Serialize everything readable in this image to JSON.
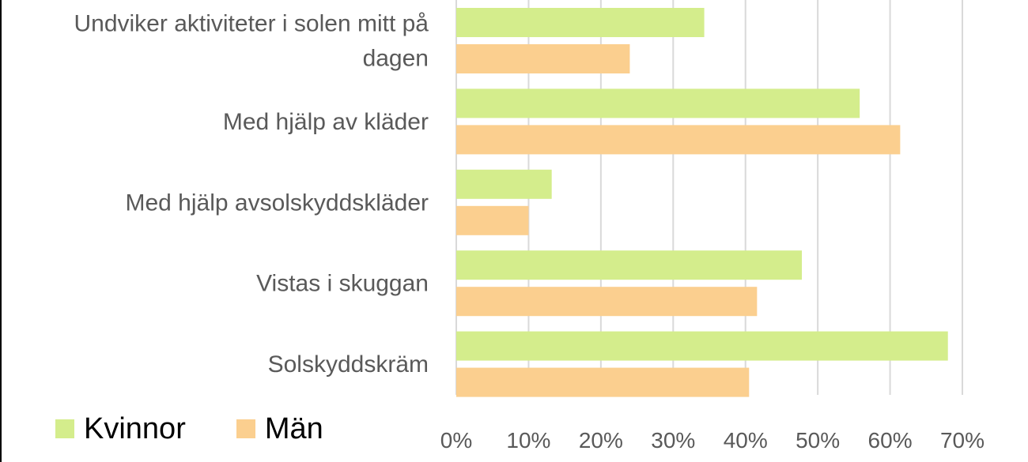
{
  "chart_data": {
    "type": "bar",
    "orientation": "horizontal",
    "categories": [
      "Undviker aktiviteter i solen mitt på dagen",
      "Med hjälp av kläder",
      "Med hjälp avsolskyddskläder",
      "Vistas i skuggan",
      "Solskyddskräm"
    ],
    "category_lines": [
      [
        "Undviker aktiviteter i solen mitt på",
        "dagen"
      ],
      [
        "Med hjälp av kläder"
      ],
      [
        "Med hjälp avsolskyddskläder"
      ],
      [
        "Vistas i skuggan"
      ],
      [
        "Solskyddskräm"
      ]
    ],
    "series": [
      {
        "name": "Kvinnor",
        "color": "#d4ed8c",
        "values": [
          34.3,
          55.8,
          13.2,
          47.8,
          68.0
        ]
      },
      {
        "name": "Män",
        "color": "#fbcf8f",
        "values": [
          24.0,
          61.4,
          10.0,
          41.6,
          40.5
        ]
      }
    ],
    "xlim": [
      0,
      70
    ],
    "xticks": [
      0,
      10,
      20,
      30,
      40,
      50,
      60,
      70
    ],
    "xtick_labels": [
      "0%",
      "10%",
      "20%",
      "30%",
      "40%",
      "50%",
      "60%",
      "70%"
    ],
    "grid": true,
    "legend_position": "bottom-left"
  }
}
